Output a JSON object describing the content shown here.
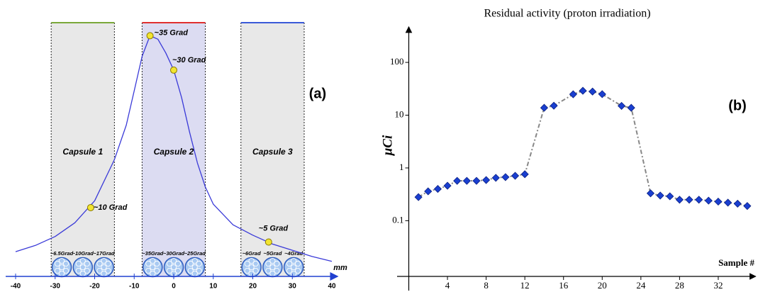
{
  "chart_data": [
    {
      "type": "line",
      "x": [
        -40,
        -35,
        -30,
        -25,
        -20,
        -15,
        -12,
        -10,
        -8,
        -6,
        -4,
        -2,
        0,
        2,
        4,
        6,
        8,
        10,
        15,
        20,
        25,
        30,
        35,
        40
      ],
      "values": [
        3.6,
        4.5,
        5.8,
        7.8,
        11,
        17,
        22,
        27,
        32,
        35,
        34.5,
        32.5,
        30,
        26,
        21,
        16.5,
        13,
        10.5,
        7.5,
        6,
        4.7,
        3.8,
        2.9,
        2.2
      ],
      "color": "#3a3ad8",
      "xlim": [
        -40,
        40
      ],
      "ylim": [
        0,
        37
      ],
      "xticks": [
        -40,
        -30,
        -20,
        -10,
        0,
        10,
        20,
        30,
        40
      ],
      "xlabel": "mm",
      "panel_label": "(a)",
      "markers": {
        "x": [
          -6,
          0,
          -21,
          24
        ],
        "values": [
          35,
          30,
          10,
          5
        ],
        "value_labels": [
          "~35 Grad",
          "~30 Grad",
          "~10 Grad",
          "~5 Grad"
        ],
        "color": "#f2e530"
      },
      "capsules": [
        {
          "label": "Capsule 1",
          "x": [
            -31,
            -15
          ],
          "color": "#7aa83a",
          "fill": "#e8e8e8",
          "samples": [
            "~6.5Grad",
            "~10Grad",
            "~17Grad"
          ]
        },
        {
          "label": "Capsule 2",
          "x": [
            -8,
            8
          ],
          "color": "#e03030",
          "fill": "#dcdcf2",
          "samples": [
            "~35Grad",
            "~30Grad",
            "~25Grad"
          ]
        },
        {
          "label": "Capsule 3",
          "x": [
            17,
            33
          ],
          "color": "#3a5ad8",
          "fill": "#e8e8e8",
          "samples": [
            "~6Grad",
            "~5Grad",
            "~4Grad"
          ]
        }
      ]
    },
    {
      "type": "scatter",
      "title": "Residual activity (proton irradiation)",
      "ylabel": "μCi",
      "xlabel": "Sample #",
      "panel_label": "(b)",
      "x": [
        1,
        2,
        3,
        4,
        5,
        6,
        7,
        8,
        9,
        10,
        11,
        12,
        14,
        15,
        17,
        18,
        19,
        20,
        22,
        23,
        25,
        26,
        27,
        28,
        29,
        30,
        31,
        32,
        33,
        34,
        35
      ],
      "values": [
        0.28,
        0.36,
        0.4,
        0.46,
        0.57,
        0.57,
        0.57,
        0.59,
        0.65,
        0.67,
        0.71,
        0.76,
        13.8,
        15.1,
        24.9,
        29,
        28,
        25,
        15,
        13.8,
        0.33,
        0.3,
        0.29,
        0.25,
        0.25,
        0.25,
        0.24,
        0.23,
        0.22,
        0.21,
        0.19
      ],
      "color": "#1a3fd0",
      "line_color": "#888888",
      "log_y": true,
      "xlim": [
        0,
        36
      ],
      "ylim": [
        0.0088,
        470
      ],
      "xticks": [
        4,
        8,
        12,
        16,
        20,
        24,
        28,
        32
      ],
      "yticks": [
        0.1,
        1,
        10,
        100
      ]
    }
  ]
}
